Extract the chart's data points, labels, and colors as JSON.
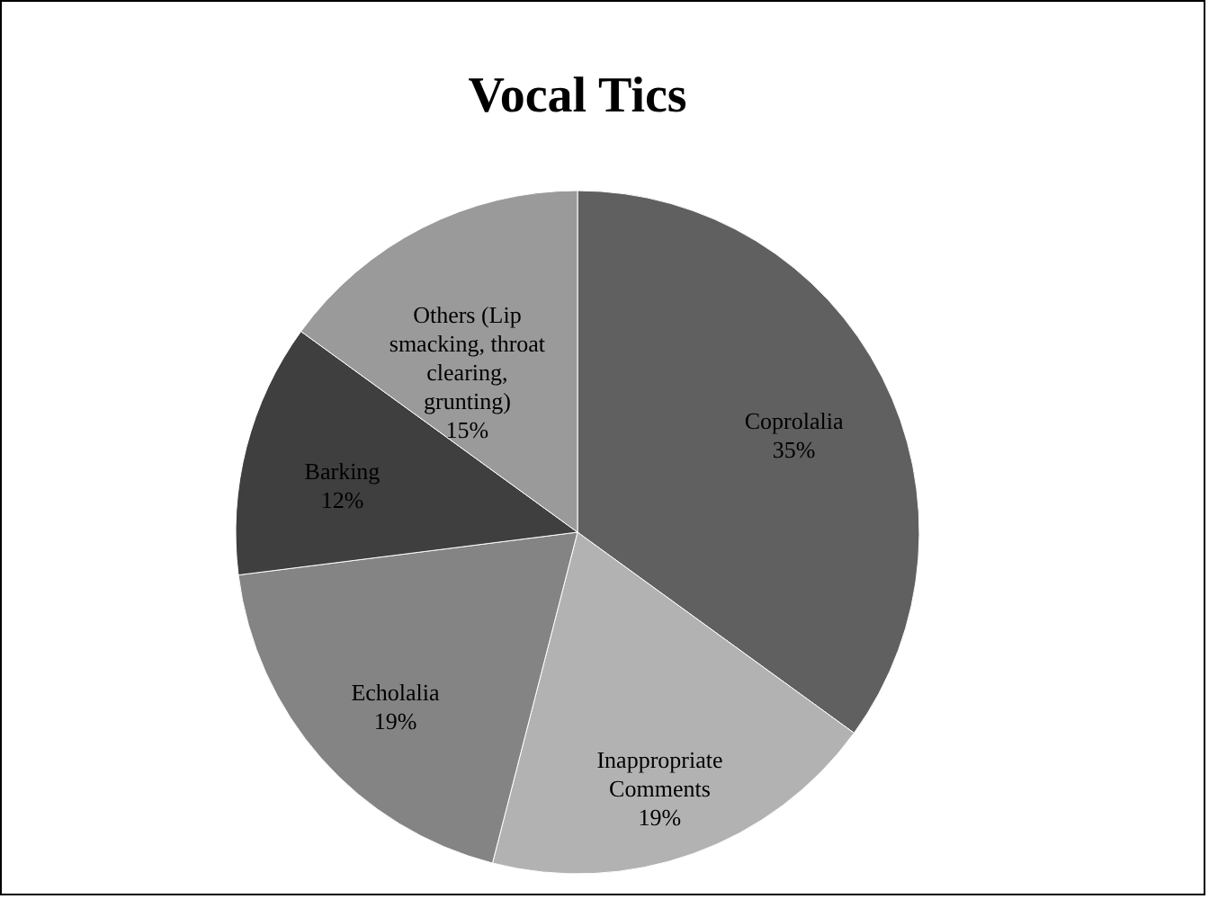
{
  "chart_data": {
    "type": "pie",
    "title": "Vocal Tics",
    "categories": [
      "Coprolalia",
      "Inappropriate Comments",
      "Echolalia",
      "Barking",
      "Others (Lip smacking, throat clearing, grunting)"
    ],
    "values": [
      35,
      19,
      19,
      12,
      15
    ],
    "colors": [
      "#606060",
      "#b2b2b2",
      "#848484",
      "#3f3f3f",
      "#9a9a9a"
    ],
    "value_labels": [
      "35%",
      "19%",
      "19%",
      "12%",
      "15%"
    ],
    "legend": false
  }
}
